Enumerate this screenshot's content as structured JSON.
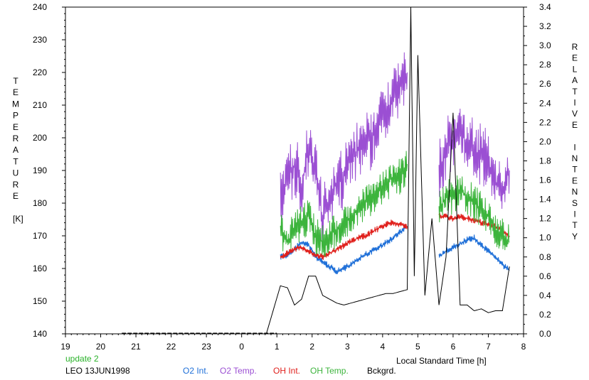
{
  "chart_data": {
    "type": "line",
    "xlabel": "Local Standard Time [h]",
    "y_left_label_letters": [
      "T",
      "E",
      "M",
      "P",
      "E",
      "R",
      "A",
      "T",
      "U",
      "R",
      "E"
    ],
    "y_left_unit": "[K]",
    "y_right_label_letters": [
      "R",
      "E",
      "L",
      "A",
      "T",
      "I",
      "V",
      "E",
      " ",
      "I",
      "N",
      "T",
      "E",
      "N",
      "S",
      "I",
      "T",
      "Y"
    ],
    "x_ticks": [
      19,
      20,
      21,
      22,
      23,
      0,
      1,
      2,
      3,
      4,
      5,
      6,
      7,
      8
    ],
    "x_tick_labels": [
      "19",
      "20",
      "21",
      "22",
      "23",
      "0",
      "1",
      "2",
      "3",
      "4",
      "5",
      "6",
      "7",
      "8"
    ],
    "x_range_hours_after_19": [
      0,
      13
    ],
    "y_left_ticks": [
      "140",
      "150",
      "160",
      "170",
      "180",
      "190",
      "200",
      "210",
      "220",
      "230",
      "240"
    ],
    "y_left_range": [
      140,
      240
    ],
    "y_right_ticks": [
      "0.0",
      "0.2",
      "0.4",
      "0.6",
      "0.8",
      "1.0",
      "1.2",
      "1.4",
      "1.6",
      "1.8",
      "2.0",
      "2.2",
      "2.4",
      "2.6",
      "2.8",
      "3.0",
      "3.2",
      "3.4"
    ],
    "y_right_range": [
      0.0,
      3.4
    ],
    "series": [
      {
        "name": "O2 Int.",
        "color": "#1e6fd8",
        "axis": "right",
        "points": [
          [
            1.1,
            0.8
          ],
          [
            1.3,
            0.82
          ],
          [
            1.5,
            0.88
          ],
          [
            1.7,
            0.95
          ],
          [
            1.9,
            0.93
          ],
          [
            2.1,
            0.8
          ],
          [
            2.3,
            0.75
          ],
          [
            2.5,
            0.7
          ],
          [
            2.7,
            0.65
          ],
          [
            2.9,
            0.68
          ],
          [
            3.1,
            0.72
          ],
          [
            3.3,
            0.78
          ],
          [
            3.5,
            0.82
          ],
          [
            3.7,
            0.86
          ],
          [
            3.9,
            0.9
          ],
          [
            4.1,
            0.95
          ],
          [
            4.3,
            1.0
          ],
          [
            4.5,
            1.06
          ],
          [
            4.7,
            1.12
          ],
          [
            5.6,
            0.8
          ],
          [
            5.8,
            0.86
          ],
          [
            6.0,
            0.9
          ],
          [
            6.2,
            0.94
          ],
          [
            6.4,
            0.98
          ],
          [
            6.6,
            1.0
          ],
          [
            6.8,
            0.92
          ],
          [
            7.0,
            0.86
          ],
          [
            7.2,
            0.8
          ],
          [
            7.4,
            0.72
          ],
          [
            7.6,
            0.66
          ]
        ]
      },
      {
        "name": "O2 Temp.",
        "color": "#9b4fd3",
        "axis": "left",
        "points": [
          [
            1.1,
            182
          ],
          [
            1.3,
            188
          ],
          [
            1.5,
            192
          ],
          [
            1.7,
            185
          ],
          [
            1.9,
            198
          ],
          [
            2.1,
            190
          ],
          [
            2.3,
            175
          ],
          [
            2.5,
            182
          ],
          [
            2.7,
            186
          ],
          [
            2.9,
            188
          ],
          [
            3.1,
            194
          ],
          [
            3.3,
            196
          ],
          [
            3.5,
            198
          ],
          [
            3.7,
            200
          ],
          [
            3.9,
            205
          ],
          [
            4.1,
            208
          ],
          [
            4.3,
            212
          ],
          [
            4.5,
            216
          ],
          [
            4.7,
            220
          ],
          [
            5.6,
            190
          ],
          [
            5.8,
            196
          ],
          [
            6.0,
            200
          ],
          [
            6.2,
            202
          ],
          [
            6.4,
            198
          ],
          [
            6.6,
            196
          ],
          [
            6.8,
            195
          ],
          [
            7.0,
            192
          ],
          [
            7.2,
            186
          ],
          [
            7.4,
            183
          ],
          [
            7.6,
            190
          ]
        ]
      },
      {
        "name": "OH Int.",
        "color": "#e0201c",
        "axis": "right",
        "points": [
          [
            1.1,
            0.8
          ],
          [
            1.3,
            0.84
          ],
          [
            1.5,
            0.88
          ],
          [
            1.7,
            0.9
          ],
          [
            1.9,
            0.86
          ],
          [
            2.1,
            0.82
          ],
          [
            2.3,
            0.8
          ],
          [
            2.5,
            0.84
          ],
          [
            2.7,
            0.88
          ],
          [
            2.9,
            0.92
          ],
          [
            3.1,
            0.96
          ],
          [
            3.3,
            1.0
          ],
          [
            3.5,
            1.02
          ],
          [
            3.7,
            1.06
          ],
          [
            3.9,
            1.1
          ],
          [
            4.1,
            1.14
          ],
          [
            4.3,
            1.16
          ],
          [
            4.5,
            1.14
          ],
          [
            4.7,
            1.12
          ],
          [
            5.6,
            1.22
          ],
          [
            5.8,
            1.22
          ],
          [
            6.0,
            1.2
          ],
          [
            6.2,
            1.22
          ],
          [
            6.4,
            1.2
          ],
          [
            6.6,
            1.18
          ],
          [
            6.8,
            1.16
          ],
          [
            7.0,
            1.14
          ],
          [
            7.2,
            1.12
          ],
          [
            7.4,
            1.08
          ],
          [
            7.6,
            1.02
          ]
        ]
      },
      {
        "name": "OH Temp.",
        "color": "#3cb43c",
        "axis": "left",
        "points": [
          [
            1.1,
            172
          ],
          [
            1.3,
            168
          ],
          [
            1.5,
            172
          ],
          [
            1.7,
            174
          ],
          [
            1.9,
            176
          ],
          [
            2.1,
            170
          ],
          [
            2.3,
            168
          ],
          [
            2.5,
            170
          ],
          [
            2.7,
            172
          ],
          [
            2.9,
            174
          ],
          [
            3.1,
            176
          ],
          [
            3.3,
            178
          ],
          [
            3.5,
            180
          ],
          [
            3.7,
            182
          ],
          [
            3.9,
            184
          ],
          [
            4.1,
            186
          ],
          [
            4.3,
            188
          ],
          [
            4.5,
            188
          ],
          [
            4.7,
            192
          ],
          [
            5.6,
            178
          ],
          [
            5.8,
            182
          ],
          [
            6.0,
            182
          ],
          [
            6.2,
            184
          ],
          [
            6.4,
            182
          ],
          [
            6.6,
            180
          ],
          [
            6.8,
            178
          ],
          [
            7.0,
            176
          ],
          [
            7.2,
            172
          ],
          [
            7.4,
            170
          ],
          [
            7.6,
            168
          ]
        ]
      },
      {
        "name": "Bckgrd.",
        "color": "#000000",
        "axis": "right",
        "points": [
          [
            0.7,
            0.0
          ],
          [
            1.1,
            0.5
          ],
          [
            1.3,
            0.48
          ],
          [
            1.5,
            0.3
          ],
          [
            1.7,
            0.36
          ],
          [
            1.9,
            0.6
          ],
          [
            2.1,
            0.6
          ],
          [
            2.3,
            0.4
          ],
          [
            2.5,
            0.36
          ],
          [
            2.7,
            0.32
          ],
          [
            2.9,
            0.3
          ],
          [
            3.1,
            0.32
          ],
          [
            3.3,
            0.34
          ],
          [
            3.5,
            0.36
          ],
          [
            3.7,
            0.38
          ],
          [
            3.9,
            0.4
          ],
          [
            4.1,
            0.42
          ],
          [
            4.3,
            0.42
          ],
          [
            4.5,
            0.44
          ],
          [
            4.7,
            0.46
          ],
          [
            4.8,
            3.4
          ],
          [
            4.9,
            0.6
          ],
          [
            5.0,
            2.9
          ],
          [
            5.2,
            0.4
          ],
          [
            5.4,
            1.2
          ],
          [
            5.6,
            0.3
          ],
          [
            5.8,
            0.8
          ],
          [
            6.0,
            2.3
          ],
          [
            6.2,
            0.3
          ],
          [
            6.4,
            0.3
          ],
          [
            6.6,
            0.24
          ],
          [
            6.8,
            0.26
          ],
          [
            7.0,
            0.22
          ],
          [
            7.2,
            0.24
          ],
          [
            7.4,
            0.24
          ],
          [
            7.6,
            0.7
          ]
        ]
      }
    ]
  },
  "footer": {
    "update_text": "update 2",
    "station_text": "LEO 13JUN1998",
    "legend": [
      {
        "label": "O2 Int.",
        "color": "#1e6fd8"
      },
      {
        "label": "O2 Temp.",
        "color": "#9b4fd3"
      },
      {
        "label": "OH Int.",
        "color": "#e0201c"
      },
      {
        "label": "OH Temp.",
        "color": "#3cb43c"
      },
      {
        "label": "Bckgrd.",
        "color": "#000000"
      }
    ]
  }
}
